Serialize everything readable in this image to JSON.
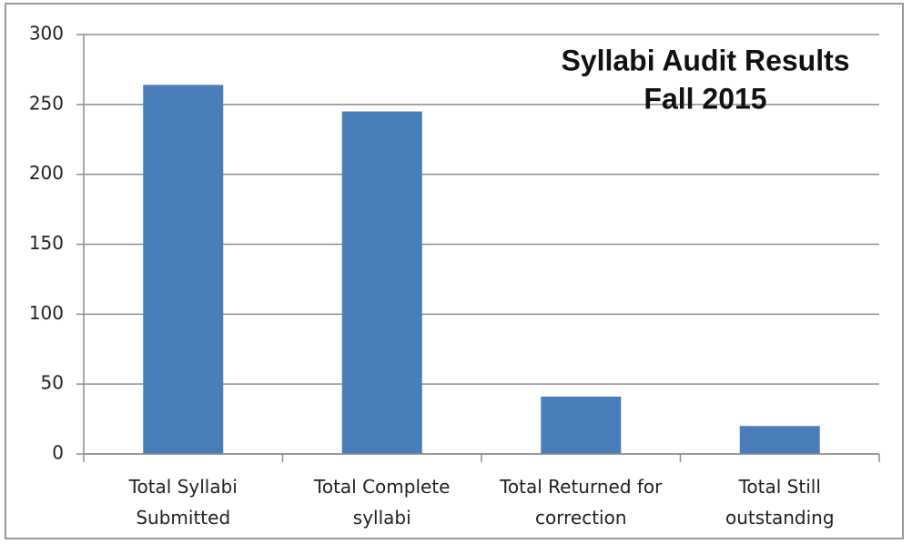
{
  "chart_data": {
    "type": "bar",
    "title": "Syllabi Audit Results",
    "subtitle": "Fall 2015",
    "categories": [
      "Total Syllabi Submitted",
      "Total Complete syllabi",
      "Total Returned for correction",
      "Total Still outstanding"
    ],
    "values": [
      264,
      245,
      41,
      20
    ],
    "color": "#4a7ebb",
    "ylim": [
      0,
      300
    ],
    "yticks": [
      0,
      50,
      100,
      150,
      200,
      250,
      300
    ],
    "grid": true
  }
}
